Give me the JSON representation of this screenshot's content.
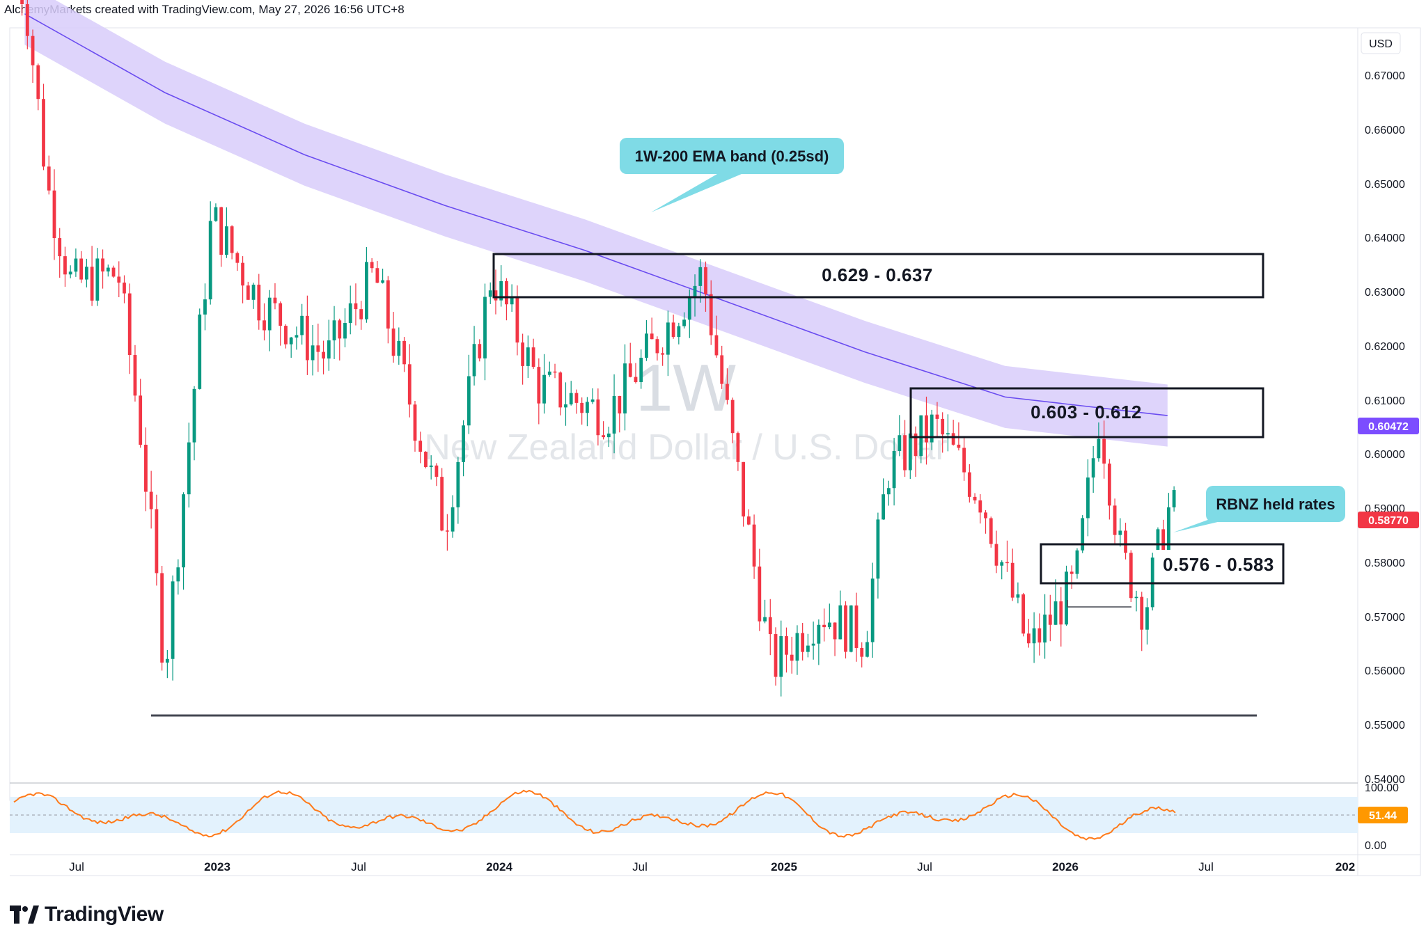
{
  "header": {
    "title": "AlchemyMarkets created with TradingView.com, May 27, 2026 16:56 UTC+8"
  },
  "watermark": {
    "interval": "1W",
    "symbol_name": "New Zealand Dollar / U.S. Dollar"
  },
  "footer": {
    "brand": "TradingView",
    "logo_icon": "tradingview-logo-icon"
  },
  "price_axis": {
    "currency": "USD",
    "ticks": [
      "0.67000",
      "0.66000",
      "0.65000",
      "0.64000",
      "0.63000",
      "0.62000",
      "0.61000",
      "0.60000",
      "0.59000",
      "0.58000",
      "0.57000",
      "0.56000",
      "0.55000",
      "0.54000"
    ],
    "ema_tag": {
      "value": "0.60472",
      "color": "#7c4dff"
    },
    "last_tag": {
      "value": "0.58770",
      "color": "#f23645"
    }
  },
  "osc_axis": {
    "ticks": [
      "100.00",
      "0.00"
    ],
    "value_tag": {
      "value": "51.44",
      "color": "#ff9800"
    }
  },
  "time_axis": {
    "labels": [
      {
        "text": "Jul",
        "bold": false
      },
      {
        "text": "2023",
        "bold": true
      },
      {
        "text": "Jul",
        "bold": false
      },
      {
        "text": "2024",
        "bold": true
      },
      {
        "text": "Jul",
        "bold": false
      },
      {
        "text": "2025",
        "bold": true
      },
      {
        "text": "Jul",
        "bold": false
      },
      {
        "text": "2026",
        "bold": true
      },
      {
        "text": "Jul",
        "bold": false
      },
      {
        "text": "202",
        "bold": true
      }
    ]
  },
  "annotations": {
    "ema_callout": "1W-200 EMA band (0.25sd)",
    "rbnz_callout": "RBNZ held rates",
    "zone_upper": "0.629 - 0.637",
    "zone_mid": "0.603 - 0.612",
    "zone_lower": "0.576 - 0.583"
  },
  "colors": {
    "up": "#089981",
    "down": "#f23645",
    "ema_line": "#6a4cf0",
    "ema_band": "#d8ccfa",
    "callout_bg": "#7fdbe6",
    "osc_line": "#ff7a1a",
    "osc_band": "#e3f2fd"
  },
  "chart_data": {
    "type": "candlestick",
    "instrument": "New Zealand Dollar / U.S. Dollar",
    "interval": "1W",
    "currency": "USD",
    "ylim": [
      0.54,
      0.675
    ],
    "anchors": [
      {
        "date": "2022-04",
        "close": 0.68
      },
      {
        "date": "2022-05",
        "close": 0.645
      },
      {
        "date": "2022-06",
        "close": 0.628
      },
      {
        "date": "2022-08",
        "close": 0.63
      },
      {
        "date": "2022-09",
        "close": 0.6
      },
      {
        "date": "2022-10",
        "close": 0.56
      },
      {
        "date": "2022-11",
        "close": 0.6
      },
      {
        "date": "2022-12",
        "close": 0.64
      },
      {
        "date": "2023-02",
        "close": 0.625
      },
      {
        "date": "2023-05",
        "close": 0.615
      },
      {
        "date": "2023-07",
        "close": 0.63
      },
      {
        "date": "2023-10",
        "close": 0.585
      },
      {
        "date": "2023-12",
        "close": 0.63
      },
      {
        "date": "2024-02",
        "close": 0.61
      },
      {
        "date": "2024-05",
        "close": 0.605
      },
      {
        "date": "2024-09",
        "close": 0.63
      },
      {
        "date": "2024-12",
        "close": 0.56
      },
      {
        "date": "2025-02",
        "close": 0.57
      },
      {
        "date": "2025-04",
        "close": 0.565
      },
      {
        "date": "2025-05",
        "close": 0.595
      },
      {
        "date": "2025-07",
        "close": 0.603
      },
      {
        "date": "2025-09",
        "close": 0.59
      },
      {
        "date": "2025-11",
        "close": 0.563
      },
      {
        "date": "2026-01",
        "close": 0.575
      },
      {
        "date": "2026-02",
        "close": 0.605
      },
      {
        "date": "2026-03",
        "close": 0.58
      },
      {
        "date": "2026-04",
        "close": 0.57
      },
      {
        "date": "2026-05",
        "close": 0.5877
      }
    ],
    "ema_200w": {
      "anchors": [
        {
          "date": "2022-04",
          "value": 0.676
        },
        {
          "date": "2022-10",
          "value": 0.662
        },
        {
          "date": "2023-04",
          "value": 0.651
        },
        {
          "date": "2023-10",
          "value": 0.642
        },
        {
          "date": "2024-04",
          "value": 0.634
        },
        {
          "date": "2024-10",
          "value": 0.625
        },
        {
          "date": "2025-04",
          "value": 0.616
        },
        {
          "date": "2025-10",
          "value": 0.608
        },
        {
          "date": "2026-05",
          "value": 0.6047
        }
      ],
      "band_halfwidth": 0.0055,
      "label": "1W-200 EMA band (0.25sd)"
    },
    "zones": [
      {
        "label": "0.629 - 0.637",
        "low": 0.629,
        "high": 0.637
      },
      {
        "label": "0.603 - 0.612",
        "low": 0.603,
        "high": 0.612
      },
      {
        "label": "0.576 - 0.583",
        "low": 0.576,
        "high": 0.583
      }
    ],
    "support_line": 0.551,
    "last_price": 0.5877,
    "oscillator": {
      "ylim": [
        0,
        100
      ],
      "last": 51.44,
      "band": [
        30,
        70
      ]
    }
  }
}
